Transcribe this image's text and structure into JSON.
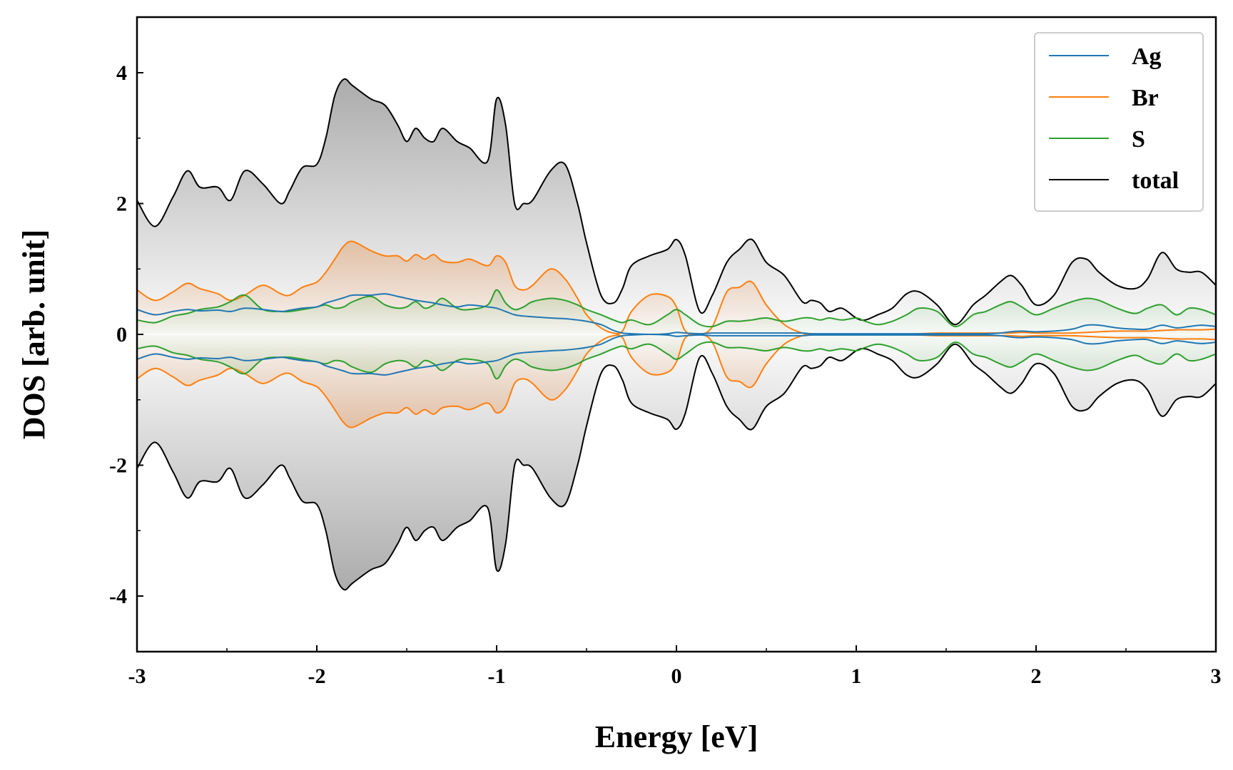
{
  "chart_data": {
    "type": "area",
    "title": "",
    "xlabel": "Energy [eV]",
    "ylabel": "DOS [arb. unit]",
    "xlim": [
      -3,
      3
    ],
    "ylim": [
      -4.85,
      4.85
    ],
    "grid": false,
    "legend_position": "top-right",
    "mirrored": true,
    "x_ticks": [
      {
        "value": -3,
        "label": "-3"
      },
      {
        "value": -2,
        "label": "-2"
      },
      {
        "value": -1,
        "label": "-1"
      },
      {
        "value": 0,
        "label": "0"
      },
      {
        "value": 1,
        "label": "1"
      },
      {
        "value": 2,
        "label": "2"
      },
      {
        "value": 3,
        "label": "3"
      }
    ],
    "y_ticks": [
      {
        "value": 4,
        "label": "4"
      },
      {
        "value": 2,
        "label": "2"
      },
      {
        "value": 0,
        "label": "0"
      },
      {
        "value": -2,
        "label": "-2"
      },
      {
        "value": -4,
        "label": "-4"
      }
    ],
    "x_minor_step": 0.5,
    "y_minor_step": 1,
    "x": [
      -3.0,
      -2.9,
      -2.8,
      -2.72,
      -2.65,
      -2.55,
      -2.48,
      -2.4,
      -2.3,
      -2.2,
      -2.15,
      -2.08,
      -2.0,
      -1.95,
      -1.9,
      -1.85,
      -1.8,
      -1.7,
      -1.62,
      -1.55,
      -1.5,
      -1.45,
      -1.4,
      -1.35,
      -1.3,
      -1.22,
      -1.15,
      -1.05,
      -1.0,
      -0.95,
      -0.9,
      -0.85,
      -0.8,
      -0.7,
      -0.62,
      -0.55,
      -0.5,
      -0.42,
      -0.35,
      -0.3,
      -0.25,
      -0.15,
      -0.05,
      0.0,
      0.05,
      0.13,
      0.2,
      0.28,
      0.35,
      0.42,
      0.5,
      0.6,
      0.7,
      0.75,
      0.8,
      0.85,
      0.92,
      1.0,
      1.05,
      1.12,
      1.2,
      1.28,
      1.35,
      1.45,
      1.55,
      1.65,
      1.72,
      1.8,
      1.86,
      1.92,
      2.0,
      2.1,
      2.2,
      2.28,
      2.35,
      2.45,
      2.55,
      2.62,
      2.7,
      2.78,
      2.85,
      2.92,
      3.0
    ],
    "series": [
      {
        "name": "Ag",
        "color": "#1f77b4",
        "values": [
          0.38,
          0.3,
          0.35,
          0.38,
          0.36,
          0.37,
          0.35,
          0.4,
          0.38,
          0.35,
          0.37,
          0.4,
          0.42,
          0.48,
          0.52,
          0.56,
          0.6,
          0.6,
          0.62,
          0.58,
          0.55,
          0.52,
          0.5,
          0.48,
          0.45,
          0.42,
          0.45,
          0.42,
          0.4,
          0.35,
          0.3,
          0.28,
          0.27,
          0.25,
          0.24,
          0.22,
          0.2,
          0.15,
          0.06,
          0.02,
          0.01,
          0.0,
          0.01,
          0.03,
          0.02,
          0.01,
          0.02,
          0.02,
          0.02,
          0.02,
          0.02,
          0.02,
          0.02,
          0.01,
          0.01,
          0.01,
          0.01,
          0.01,
          0.01,
          0.01,
          0.01,
          0.01,
          0.01,
          0.01,
          0.01,
          0.01,
          0.01,
          0.02,
          0.04,
          0.05,
          0.04,
          0.05,
          0.08,
          0.14,
          0.14,
          0.1,
          0.08,
          0.08,
          0.14,
          0.1,
          0.12,
          0.14,
          0.12
        ]
      },
      {
        "name": "Br",
        "color": "#ff7f0e",
        "values": [
          0.68,
          0.52,
          0.65,
          0.78,
          0.7,
          0.62,
          0.52,
          0.6,
          0.75,
          0.62,
          0.6,
          0.72,
          0.8,
          0.95,
          1.15,
          1.35,
          1.42,
          1.28,
          1.2,
          1.2,
          1.12,
          1.22,
          1.15,
          1.22,
          1.12,
          1.1,
          1.15,
          1.05,
          1.2,
          1.1,
          0.75,
          0.68,
          0.75,
          1.0,
          0.85,
          0.55,
          0.3,
          0.1,
          0.02,
          0.05,
          0.35,
          0.6,
          0.58,
          0.42,
          0.05,
          0.0,
          0.12,
          0.65,
          0.72,
          0.8,
          0.45,
          0.15,
          0.02,
          0.01,
          0.0,
          0.0,
          0.0,
          0.0,
          0.0,
          0.0,
          0.0,
          0.0,
          0.01,
          0.02,
          0.02,
          0.02,
          0.02,
          0.02,
          0.02,
          0.03,
          0.02,
          0.02,
          0.02,
          0.03,
          0.04,
          0.05,
          0.05,
          0.05,
          0.06,
          0.07,
          0.07,
          0.07,
          0.08
        ]
      },
      {
        "name": "S",
        "color": "#2ca02c",
        "values": [
          0.22,
          0.18,
          0.28,
          0.32,
          0.38,
          0.42,
          0.5,
          0.6,
          0.38,
          0.35,
          0.35,
          0.38,
          0.42,
          0.45,
          0.4,
          0.42,
          0.5,
          0.58,
          0.45,
          0.4,
          0.42,
          0.5,
          0.4,
          0.45,
          0.55,
          0.4,
          0.38,
          0.45,
          0.68,
          0.48,
          0.38,
          0.42,
          0.5,
          0.55,
          0.52,
          0.45,
          0.38,
          0.3,
          0.22,
          0.18,
          0.22,
          0.15,
          0.3,
          0.38,
          0.3,
          0.15,
          0.12,
          0.2,
          0.2,
          0.22,
          0.25,
          0.2,
          0.25,
          0.25,
          0.22,
          0.25,
          0.22,
          0.25,
          0.2,
          0.15,
          0.2,
          0.3,
          0.4,
          0.35,
          0.12,
          0.3,
          0.35,
          0.45,
          0.5,
          0.42,
          0.3,
          0.4,
          0.5,
          0.55,
          0.52,
          0.4,
          0.32,
          0.4,
          0.45,
          0.3,
          0.4,
          0.38,
          0.3
        ]
      },
      {
        "name": "total",
        "color": "#000000",
        "values": [
          2.05,
          1.65,
          2.1,
          2.5,
          2.25,
          2.25,
          2.05,
          2.5,
          2.3,
          2.0,
          2.2,
          2.55,
          2.6,
          3.0,
          3.65,
          3.9,
          3.8,
          3.6,
          3.5,
          3.2,
          2.95,
          3.15,
          3.0,
          2.95,
          3.15,
          2.95,
          2.85,
          2.65,
          3.6,
          3.2,
          2.0,
          2.0,
          2.05,
          2.5,
          2.6,
          2.0,
          1.4,
          0.6,
          0.48,
          0.7,
          1.05,
          1.2,
          1.3,
          1.45,
          1.2,
          0.35,
          0.6,
          1.1,
          1.3,
          1.45,
          1.1,
          0.9,
          0.5,
          0.52,
          0.48,
          0.35,
          0.4,
          0.25,
          0.22,
          0.3,
          0.4,
          0.62,
          0.65,
          0.45,
          0.15,
          0.45,
          0.6,
          0.8,
          0.9,
          0.75,
          0.45,
          0.6,
          1.1,
          1.15,
          0.95,
          0.75,
          0.7,
          0.85,
          1.25,
          1.0,
          0.95,
          0.95,
          0.75
        ]
      }
    ]
  }
}
